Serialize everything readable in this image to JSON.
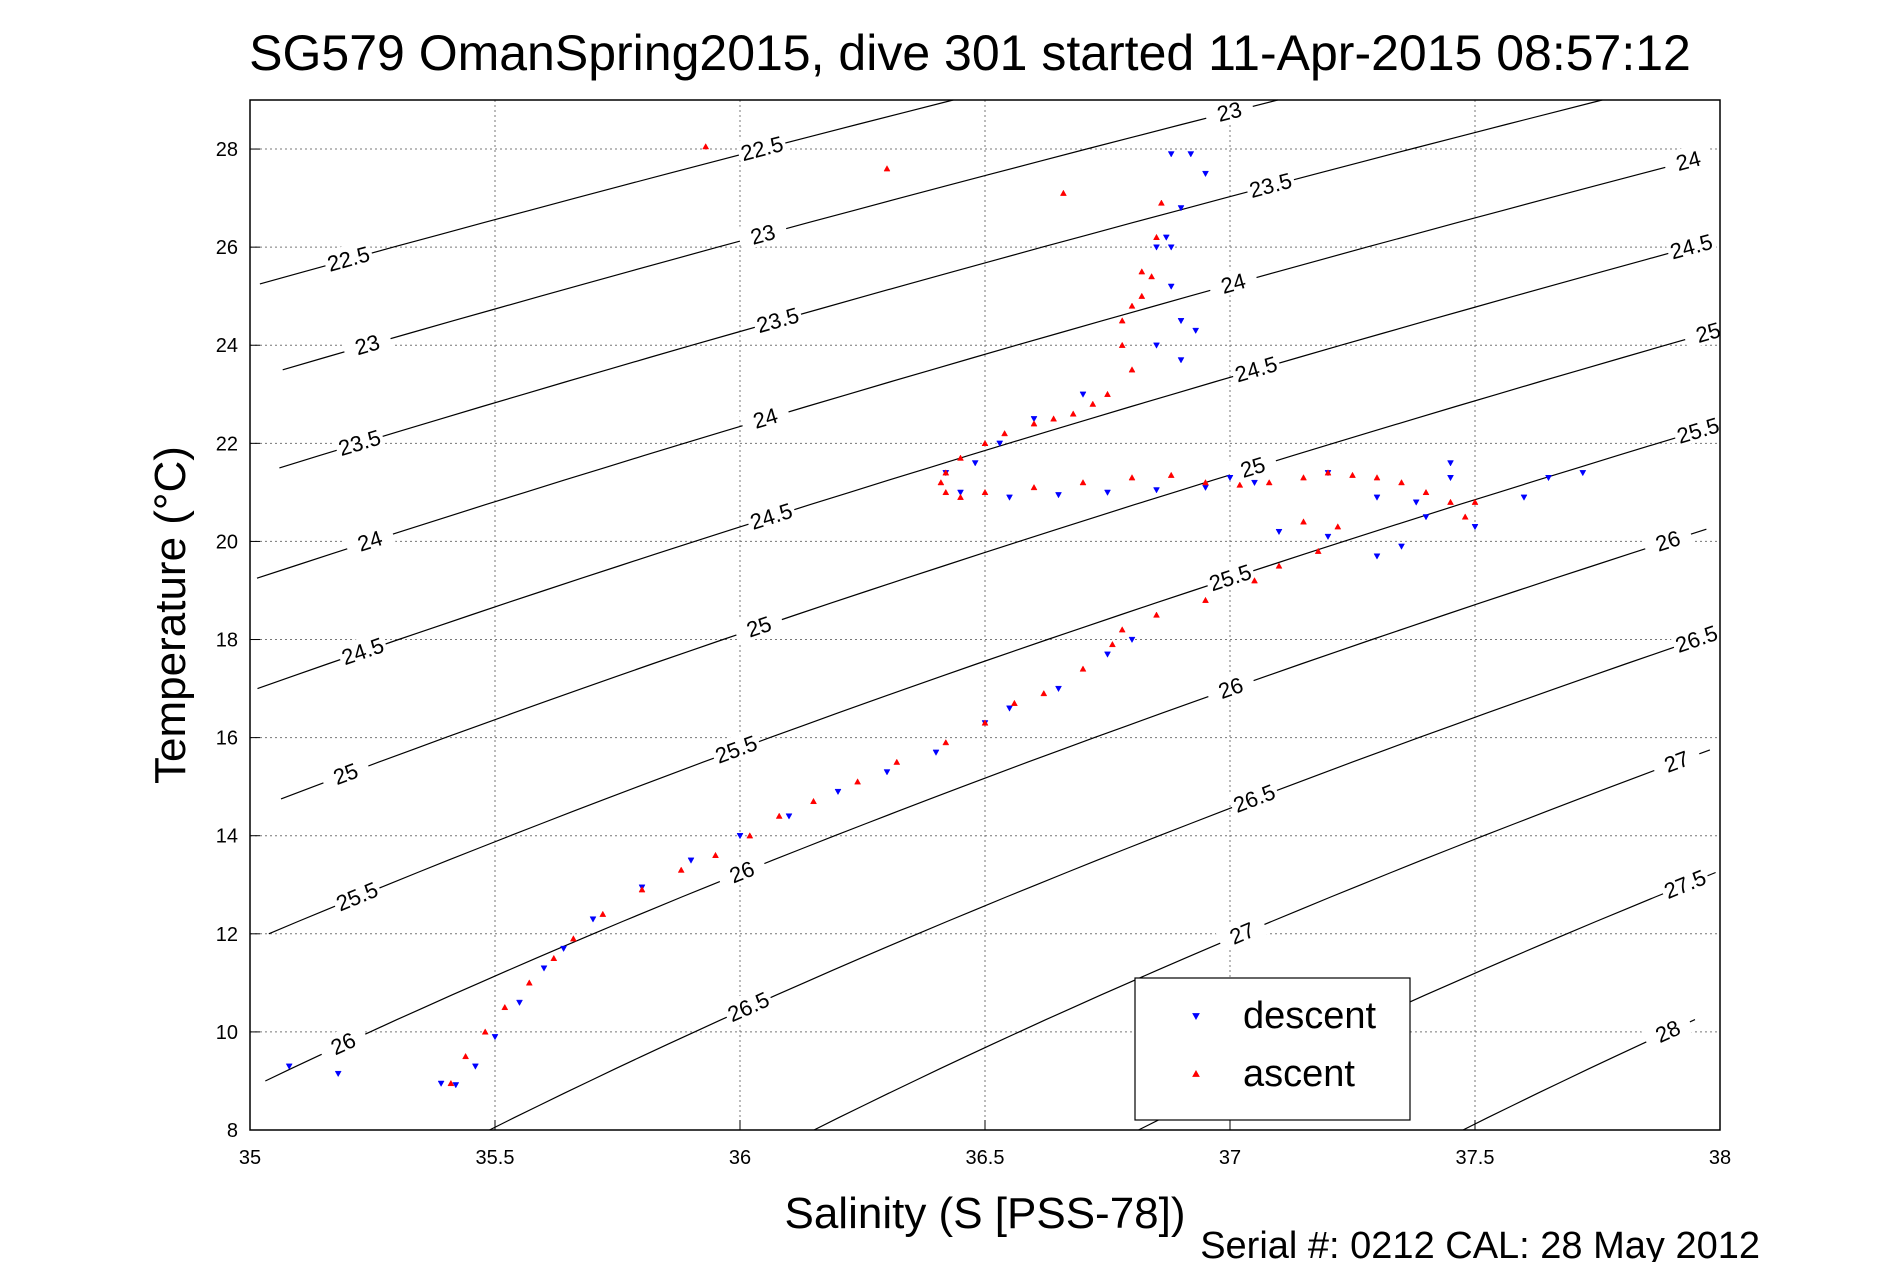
{
  "chart_data": {
    "type": "scatter",
    "title": "SG579 OmanSpring2015, dive 301 started 11-Apr-2015 08:57:12",
    "xlabel": "Salinity (S [PSS-78])",
    "ylabel": "Temperature (°C)",
    "xlim": [
      35,
      38
    ],
    "ylim": [
      8,
      29
    ],
    "x_ticks": [
      35,
      35.5,
      36,
      36.5,
      37,
      37.5,
      38
    ],
    "y_ticks": [
      8,
      10,
      12,
      14,
      16,
      18,
      20,
      22,
      24,
      26,
      28
    ],
    "grid": true,
    "legend_position": "bottom-right",
    "footer": "Serial #: 0212  CAL: 28 May 2012",
    "density_contours": {
      "color": "#000000",
      "levels": [
        22.5,
        23,
        23.5,
        24,
        24.5,
        25,
        25.5,
        26,
        26.5,
        27,
        27.5,
        28
      ]
    },
    "series": [
      {
        "name": "descent",
        "marker": "triangle-down",
        "color": "#0000ff",
        "x": [
          35.08,
          35.18,
          35.39,
          35.42,
          35.46,
          35.5,
          35.55,
          35.6,
          35.64,
          35.7,
          35.8,
          35.9,
          36.0,
          36.1,
          36.2,
          36.3,
          36.4,
          36.5,
          36.55,
          36.65,
          36.75,
          36.8,
          36.7,
          36.6,
          36.53,
          36.48,
          36.42,
          36.45,
          36.55,
          36.65,
          36.75,
          36.85,
          36.95,
          37.0,
          37.05,
          37.1,
          37.2,
          37.3,
          37.35,
          37.4,
          37.45,
          37.5,
          37.45,
          37.38,
          37.3,
          37.2,
          37.6,
          37.65,
          37.72,
          36.88,
          36.92,
          36.95,
          36.9,
          36.87,
          36.85,
          36.88,
          36.9,
          36.85,
          36.9,
          36.93,
          36.88
        ],
        "y": [
          9.3,
          9.15,
          8.95,
          8.92,
          9.3,
          9.9,
          10.6,
          11.3,
          11.7,
          12.3,
          12.95,
          13.5,
          14.0,
          14.4,
          14.9,
          15.3,
          15.7,
          16.3,
          16.6,
          17.0,
          17.7,
          18.0,
          23.0,
          22.5,
          22.0,
          21.6,
          21.4,
          21.0,
          20.9,
          20.95,
          21.0,
          21.05,
          21.1,
          21.3,
          21.2,
          20.2,
          20.1,
          19.7,
          19.9,
          20.5,
          21.6,
          20.3,
          21.3,
          20.8,
          20.9,
          21.4,
          20.9,
          21.3,
          21.4,
          27.9,
          27.9,
          27.5,
          26.8,
          26.2,
          26.0,
          25.2,
          24.5,
          24.0,
          23.7,
          24.3,
          26.0
        ]
      },
      {
        "name": "ascent",
        "marker": "triangle-up",
        "color": "#ff0000",
        "x": [
          35.41,
          35.44,
          35.48,
          35.52,
          35.57,
          35.62,
          35.66,
          35.72,
          35.8,
          35.88,
          35.95,
          36.02,
          36.08,
          36.15,
          36.24,
          36.32,
          36.42,
          36.5,
          36.56,
          36.62,
          36.7,
          36.76,
          36.78,
          36.75,
          36.72,
          36.68,
          36.64,
          36.6,
          36.54,
          36.5,
          36.45,
          36.42,
          36.41,
          36.42,
          36.45,
          36.5,
          36.6,
          36.7,
          36.8,
          36.88,
          36.95,
          37.02,
          37.08,
          37.15,
          37.2,
          37.25,
          37.3,
          37.35,
          37.4,
          37.45,
          37.48,
          37.5,
          37.15,
          37.18,
          37.22,
          37.1,
          37.05,
          36.95,
          36.85,
          36.8,
          36.78,
          36.8,
          36.82,
          36.85,
          36.86,
          36.84,
          36.82,
          36.78,
          36.66,
          36.3,
          35.93
        ],
        "y": [
          8.95,
          9.5,
          10.0,
          10.5,
          11.0,
          11.5,
          11.9,
          12.4,
          12.9,
          13.3,
          13.6,
          14.0,
          14.4,
          14.7,
          15.1,
          15.5,
          15.9,
          16.3,
          16.7,
          16.9,
          17.4,
          17.9,
          18.2,
          23.0,
          22.8,
          22.6,
          22.5,
          22.4,
          22.2,
          22.0,
          21.7,
          21.4,
          21.2,
          21.0,
          20.9,
          21.0,
          21.1,
          21.2,
          21.3,
          21.35,
          21.2,
          21.15,
          21.2,
          21.3,
          21.4,
          21.35,
          21.3,
          21.2,
          21.0,
          20.8,
          20.5,
          20.8,
          20.4,
          19.8,
          20.3,
          19.5,
          19.2,
          18.8,
          18.5,
          23.5,
          24.0,
          24.8,
          25.5,
          26.2,
          26.9,
          25.4,
          25.0,
          24.5,
          27.1,
          27.6,
          28.05
        ]
      }
    ]
  }
}
